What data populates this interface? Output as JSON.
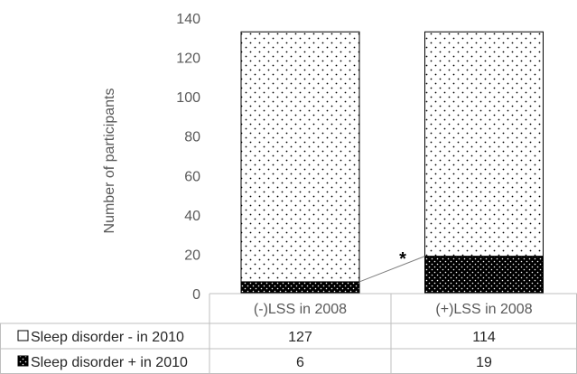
{
  "chart_data": {
    "type": "bar",
    "stacked": true,
    "ylabel": "Number of participants",
    "ylim": [
      0,
      140
    ],
    "yticks": [
      "0",
      "20",
      "40",
      "60",
      "80",
      "100",
      "120",
      "140"
    ],
    "categories": [
      "(-)LSS in 2008",
      "(+)LSS in 2008"
    ],
    "series": [
      {
        "name": "Sleep disorder + in 2010",
        "values": [
          6,
          19
        ],
        "pattern": "dense-dots",
        "fill": "#000000"
      },
      {
        "name": "Sleep disorder - in 2010",
        "values": [
          127,
          114
        ],
        "pattern": "sparse-dots",
        "fill": "#ffffff"
      }
    ],
    "annotation": "*",
    "grid": false,
    "legend": "data-table-left"
  },
  "table": {
    "rows": [
      {
        "label": "Sleep disorder - in 2010",
        "values": [
          "127",
          "114"
        ]
      },
      {
        "label": "Sleep disorder + in 2010",
        "values": [
          "6",
          "19"
        ]
      }
    ]
  }
}
